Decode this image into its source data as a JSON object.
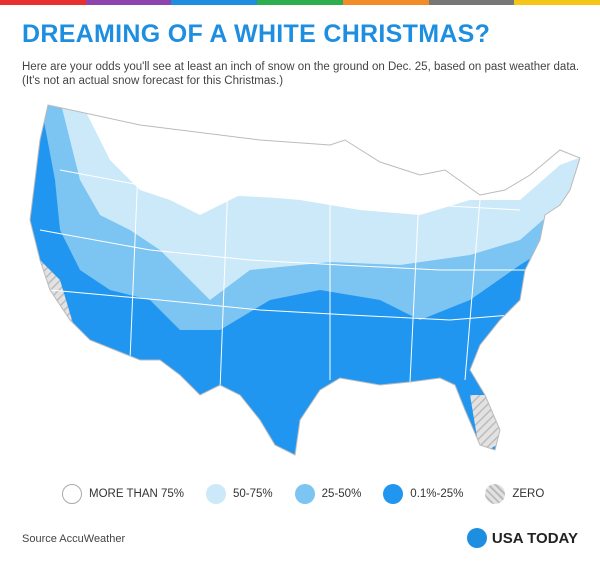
{
  "header": {
    "title": "DREAMING OF A WHITE CHRISTMAS?",
    "subtitle": "Here are your odds you'll see at least an inch of snow on the ground on Dec. 25, based on past weather data.",
    "note": "(It's not an actual snow forecast for this Christmas.)"
  },
  "legend": [
    {
      "label": "MORE THAN 75%"
    },
    {
      "label": "50-75%"
    },
    {
      "label": "25-50%"
    },
    {
      "label": "0.1%-25%"
    },
    {
      "label": "ZERO"
    }
  ],
  "footer": {
    "source": "Source AccuWeather",
    "brand": "USA TODAY"
  }
}
